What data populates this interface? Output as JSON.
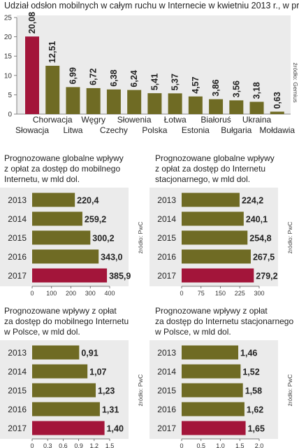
{
  "chart_data": [
    {
      "type": "bar",
      "title": "Udział odsłon mobilnych w całym ruchu w Internecie w kwietniu 2013 r., w proc.",
      "source": "źródło: Gemius",
      "categories": [
        "Słowacja",
        "Chorwacja",
        "Litwa",
        "Węgry",
        "Czechy",
        "Słowenia",
        "Polska",
        "Łotwa",
        "Estonia",
        "Białoruś",
        "Bułgaria",
        "Ukraina",
        "Mołdawia"
      ],
      "values": [
        20.08,
        12.51,
        6.99,
        6.72,
        6.38,
        6.24,
        5.41,
        5.37,
        4.57,
        3.86,
        3.56,
        3.18,
        0.63
      ],
      "value_labels": [
        "20,08",
        "12,51",
        "6,99",
        "6,72",
        "6,38",
        "6,24",
        "5,41",
        "5,37",
        "4,57",
        "3,86",
        "3,56",
        "3,18",
        "0,63"
      ],
      "highlight": [
        0
      ],
      "ylim": [
        0,
        25
      ],
      "yticks": [
        0,
        5,
        10,
        15,
        20,
        25
      ],
      "ytick_labels": [
        "0",
        "5",
        "10",
        "15",
        "20",
        "25"
      ],
      "grid": false
    },
    {
      "type": "bar",
      "orientation": "horizontal",
      "title": "Prognozowane globalne wpływy z opłat za dostęp do mobilnego Internetu, w mld dol.",
      "source": "źródło: PwC",
      "categories": [
        "2013",
        "2014",
        "2015",
        "2016",
        "2017"
      ],
      "values": [
        220.4,
        259.2,
        300.2,
        343.0,
        385.9
      ],
      "value_labels": [
        "220,4",
        "259,2",
        "300,2",
        "343,0",
        "385,9"
      ],
      "highlight": [
        4
      ],
      "xlim": [
        0,
        400
      ],
      "xticks": [
        0,
        100,
        200,
        300,
        400
      ],
      "xtick_labels": [
        "0",
        "100",
        "200",
        "300",
        "400"
      ]
    },
    {
      "type": "bar",
      "orientation": "horizontal",
      "title": "Prognozowane globalne wpływy z opłat za dostęp do Internetu stacjonarnego, w mld dol.",
      "source": "źródło: PwC",
      "categories": [
        "2013",
        "2014",
        "2015",
        "2016",
        "2017"
      ],
      "values": [
        224.2,
        240.1,
        254.8,
        267.5,
        279.2
      ],
      "value_labels": [
        "224,2",
        "240,1",
        "254,8",
        "267,5",
        "279,2"
      ],
      "highlight": [
        4
      ],
      "xlim": [
        0,
        300
      ],
      "xticks": [
        0,
        75,
        150,
        225,
        300
      ],
      "xtick_labels": [
        "0",
        "75",
        "150",
        "225",
        "300"
      ]
    },
    {
      "type": "bar",
      "orientation": "horizontal",
      "title": "Prognozowane wpływy z opłat za dostęp do mobilnego Internetu w Polsce, w mld dol.",
      "source": "źródło: PwC",
      "categories": [
        "2013",
        "2014",
        "2015",
        "2016",
        "2017"
      ],
      "values": [
        0.91,
        1.07,
        1.23,
        1.31,
        1.4
      ],
      "value_labels": [
        "0,91",
        "1,07",
        "1,23",
        "1,31",
        "1,40"
      ],
      "highlight": [
        4
      ],
      "xlim": [
        0,
        1.5
      ],
      "xticks": [
        0,
        0.3,
        0.6,
        0.9,
        1.2,
        1.5
      ],
      "xtick_labels": [
        "0",
        "0,3",
        "0,6",
        "0,9",
        "1,2",
        "1,5"
      ]
    },
    {
      "type": "bar",
      "orientation": "horizontal",
      "title": "Prognozowane wpływy z opłat za dostęp do Internetu stacjonarnego w Polsce, w mld dol.",
      "source": "źródło: PwC",
      "categories": [
        "2013",
        "2014",
        "2015",
        "2016",
        "2017"
      ],
      "values": [
        1.46,
        1.52,
        1.58,
        1.62,
        1.65
      ],
      "value_labels": [
        "1,46",
        "1,52",
        "1,58",
        "1,62",
        "1,65"
      ],
      "highlight": [
        4
      ],
      "xlim": [
        0,
        2.0
      ],
      "xticks": [
        0,
        0.5,
        1.0,
        1.5,
        2.0
      ],
      "xtick_labels": [
        "0",
        "0,5",
        "1,0",
        "1,5",
        "2,0"
      ]
    }
  ],
  "page": {
    "title_main": "Udział odsłon mobilnych w całym ruchu w Internecie w kwietniu 2013 r., w proc.",
    "subtitle_1": "Prognozowane globalne wpływy\nz opłat za dostęp do mobilnego\nInternetu, w mld dol.",
    "subtitle_2": "Prognozowane globalne wpływy\nz opłat za dostęp do Internetu\nstacjonarnego, w mld dol.",
    "subtitle_3": "Prognozowane wpływy z opłat\nza dostęp do mobilnego Internetu\nw Polsce, w mld dol.",
    "subtitle_4": "Prognozowane wpływy z opłat\nza dostęp do Internetu stacjonarnego\nw Polsce, w mld dol."
  },
  "colors": {
    "olive": "#6f6b24",
    "highlight": "#a3153a",
    "panel": "#ebebeb"
  }
}
